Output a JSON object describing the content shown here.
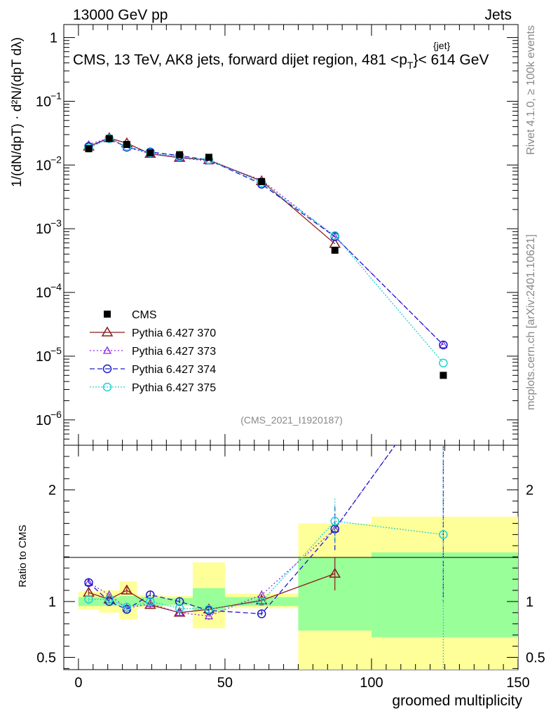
{
  "header": {
    "energy": "13000 GeV pp",
    "category": "Jets",
    "title_main": "CMS, 13 TeV, AK8 jets, forward dijet region, 481 <p",
    "title_sup": "{jet}",
    "title_sub": "T",
    "title_tail": "}< 614 GeV",
    "analysis_tag": "(CMS_2021_I1920187)",
    "side_rivet": "Rivet 4.1.0, ≥ 100k events",
    "side_mcplots": "mcplots.cern.ch [arXiv:2401.10621]"
  },
  "axes": {
    "top_ylabel": "1/(dN/dpT) · d²N/(dpT dλ)",
    "ratio_ylabel": "Ratio to CMS",
    "xlabel": "groomed multiplicity",
    "x_ticks": [
      "0",
      "50",
      "100",
      "150"
    ],
    "top_y_ticks": [
      "1",
      "10",
      "10",
      "10",
      "10",
      "10",
      "10"
    ],
    "top_y_exponents": [
      "",
      "−1",
      "−2",
      "−3",
      "−4",
      "−5",
      "−6"
    ],
    "ratio_y_ticks_left": [
      "2",
      "1",
      "0.5"
    ],
    "ratio_y_ticks_right": [
      "2",
      "1",
      "0.5"
    ]
  },
  "legend": [
    {
      "label": "CMS",
      "marker": "square",
      "color": "#000000",
      "dash": ""
    },
    {
      "label": "Pythia 6.427 370",
      "marker": "triangle",
      "color": "#8b1a1a",
      "dash": ""
    },
    {
      "label": "Pythia 6.427 373",
      "marker": "triangle-small",
      "color": "#8a2be2",
      "dash": "2,3"
    },
    {
      "label": "Pythia 6.427 374",
      "marker": "circle",
      "color": "#1a1acc",
      "dash": "7,4"
    },
    {
      "label": "Pythia 6.427 375",
      "marker": "circle",
      "color": "#20d0d0",
      "dash": "2,2"
    }
  ],
  "chart_data": {
    "type": "line",
    "title": "CMS, 13 TeV, AK8 jets, forward dijet region, 481 < pT{jet} < 614 GeV",
    "xlabel": "groomed multiplicity",
    "xlim": [
      -5,
      150
    ],
    "ylim_log": [
      4e-07,
      1.6
    ],
    "ratio_ylim": [
      0.39,
      2.4
    ],
    "x": [
      3.5,
      10.5,
      16.5,
      24.5,
      34.5,
      44.5,
      62.5,
      87.5,
      124.5
    ],
    "cms": {
      "values": [
        0.018,
        0.026,
        0.021,
        0.0155,
        0.0145,
        0.0132,
        0.0055,
        0.00046,
        5e-06
      ],
      "errors": [
        0.001,
        0.0012,
        0.001,
        0.0008,
        0.0008,
        0.0007,
        0.0003,
        3e-05,
        5e-07
      ]
    },
    "bands": {
      "edges": [
        0,
        7,
        14,
        20,
        29,
        39,
        50,
        75,
        100,
        150
      ],
      "inner": [
        [
          0.96,
          1.04
        ],
        [
          0.96,
          1.04
        ],
        [
          0.96,
          1.05
        ],
        [
          0.96,
          1.04
        ],
        [
          0.97,
          1.03
        ],
        [
          0.92,
          1.12
        ],
        [
          0.96,
          1.04
        ],
        [
          0.74,
          1.39
        ],
        [
          0.68,
          1.44
        ]
      ],
      "outer": [
        [
          0.93,
          1.09
        ],
        [
          0.9,
          1.1
        ],
        [
          0.84,
          1.18
        ],
        [
          0.94,
          1.06
        ],
        [
          0.96,
          1.05
        ],
        [
          0.76,
          1.35
        ],
        [
          0.94,
          1.07
        ],
        [
          0.39,
          1.7
        ],
        [
          0.39,
          1.76
        ]
      ],
      "band_x": [
        [
          0,
          7
        ],
        [
          7,
          14
        ],
        [
          14,
          20
        ],
        [
          20,
          29
        ],
        [
          29,
          39
        ],
        [
          39,
          50
        ],
        [
          50,
          75
        ],
        [
          75,
          100
        ],
        [
          100,
          150
        ]
      ]
    },
    "series": [
      {
        "name": "Pythia 6.427 370",
        "x": [
          3.5,
          10.5,
          16.5,
          24.5,
          34.5,
          44.5,
          62.5,
          87.5
        ],
        "values": [
          0.0195,
          0.0265,
          0.022,
          0.015,
          0.013,
          0.012,
          0.0056,
          0.00058
        ],
        "ratio": [
          1.08,
          1.02,
          1.1,
          0.97,
          0.9,
          0.93,
          1.01,
          1.25
        ],
        "ratio_err": [
          0.03,
          0.03,
          0.03,
          0.03,
          0.03,
          0.03,
          0.04,
          0.15
        ]
      },
      {
        "name": "Pythia 6.427 373",
        "x": [
          3.5,
          10.5,
          16.5,
          24.5,
          34.5,
          44.5,
          62.5,
          87.5,
          124.5
        ],
        "values": [
          0.021,
          0.0265,
          0.019,
          0.015,
          0.013,
          0.0115,
          0.0058,
          0.00075,
          1.5e-05
        ],
        "ratio": [
          1.17,
          1.06,
          0.94,
          0.98,
          0.9,
          0.87,
          1.06,
          1.65,
          3.0
        ],
        "ratio_err": [
          0.04,
          0.04,
          0.04,
          0.03,
          0.03,
          0.04,
          0.04,
          0.2,
          2.0
        ]
      },
      {
        "name": "Pythia 6.427 374",
        "x": [
          3.5,
          10.5,
          16.5,
          24.5,
          34.5,
          44.5,
          62.5,
          87.5,
          124.5
        ],
        "values": [
          0.0195,
          0.026,
          0.019,
          0.016,
          0.014,
          0.012,
          0.005,
          0.00075,
          1.5e-05
        ],
        "ratio": [
          1.17,
          1.0,
          0.93,
          1.06,
          1.0,
          0.92,
          0.89,
          1.65,
          3.0
        ],
        "ratio_err": [
          0.04,
          0.04,
          0.04,
          0.03,
          0.03,
          0.04,
          0.03,
          0.2,
          2.0
        ]
      },
      {
        "name": "Pythia 6.427 375",
        "x": [
          3.5,
          10.5,
          16.5,
          24.5,
          34.5,
          44.5,
          62.5,
          87.5,
          124.5
        ],
        "values": [
          0.0185,
          0.026,
          0.0195,
          0.0155,
          0.0135,
          0.012,
          0.0053,
          0.00078,
          7.8e-06
        ],
        "ratio": [
          1.02,
          1.02,
          0.95,
          1.0,
          0.94,
          0.93,
          1.0,
          1.72,
          1.6
        ],
        "ratio_err": [
          0.04,
          0.04,
          0.04,
          0.03,
          0.03,
          0.04,
          0.04,
          0.2,
          1.5
        ]
      }
    ]
  }
}
